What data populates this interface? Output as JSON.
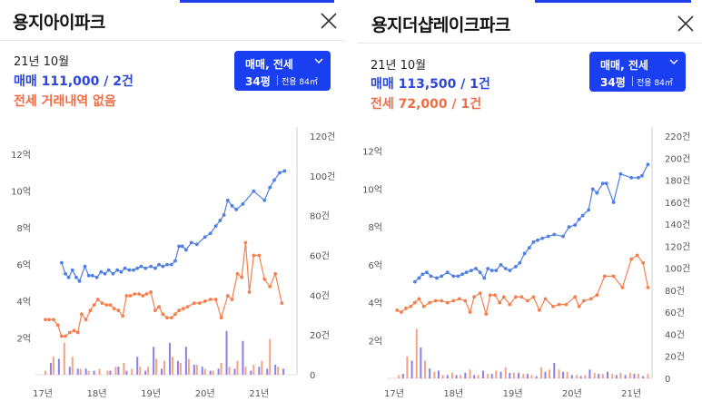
{
  "colors": {
    "accent": "#1a3ff0",
    "sale": "#4f7fe0",
    "jeonse": "#f4804f",
    "sale_bar": "#8b80e8",
    "jeonse_bar": "#f6a287"
  },
  "panels": [
    {
      "title": "용지아이파크",
      "close_icon": "close-icon",
      "date": "21년 10월",
      "sale": "매매 111,000 / 2건",
      "jeonse": "전세 거래내역 없음",
      "selector": {
        "type": "매매, 전세",
        "pyeong": "34평",
        "area": "전용 84㎡",
        "icon": "chevron-down-icon"
      },
      "chart_data": {
        "type": "line",
        "x_ticks": [
          "17년",
          "18년",
          "19년",
          "20년",
          "21년"
        ],
        "x_range": [
          2017.0,
          2021.7
        ],
        "y_left_ticks": [
          "12억",
          "10억",
          "8억",
          "6억",
          "4억",
          "2억"
        ],
        "y_left_range": [
          0,
          13
        ],
        "y_right_ticks": [
          "120건",
          "100건",
          "80건",
          "60건",
          "40건",
          "20건",
          "0"
        ],
        "y_right_range": [
          0,
          120
        ],
        "series": [
          {
            "color": "#4f7fe0",
            "kind": "line",
            "x": [
              2017.35,
              2017.42,
              2017.48,
              2017.55,
              2017.62,
              2017.68,
              2017.78,
              2017.85,
              2017.92,
              2018.0,
              2018.08,
              2018.15,
              2018.22,
              2018.3,
              2018.38,
              2018.45,
              2018.52,
              2018.6,
              2018.68,
              2018.75,
              2018.82,
              2018.9,
              2019.0,
              2019.08,
              2019.15,
              2019.22,
              2019.3,
              2019.38,
              2019.45,
              2019.52,
              2019.58,
              2019.65,
              2019.75,
              2019.85,
              2020.0,
              2020.1,
              2020.2,
              2020.28,
              2020.35,
              2020.42,
              2020.5,
              2020.58,
              2020.7,
              2020.9,
              2021.1,
              2021.2,
              2021.28,
              2021.38,
              2021.47
            ],
            "y": [
              6.1,
              5.5,
              5.3,
              5.7,
              5.3,
              5.1,
              5.9,
              5.4,
              5.4,
              5.3,
              5.6,
              5.5,
              5.7,
              5.5,
              5.7,
              5.6,
              5.8,
              5.7,
              5.7,
              5.8,
              5.9,
              5.8,
              5.9,
              5.8,
              6.0,
              5.9,
              6.0,
              6.0,
              6.2,
              7.0,
              7.0,
              6.8,
              7.2,
              7.1,
              7.5,
              7.7,
              8.1,
              8.4,
              8.7,
              9.5,
              9.2,
              9.0,
              9.3,
              10.0,
              9.5,
              10.2,
              10.6,
              11.0,
              11.1
            ]
          },
          {
            "color": "#f4804f",
            "kind": "line",
            "x": [
              2017.05,
              2017.12,
              2017.2,
              2017.28,
              2017.35,
              2017.42,
              2017.5,
              2017.58,
              2017.65,
              2017.72,
              2017.8,
              2017.88,
              2017.95,
              2018.02,
              2018.1,
              2018.18,
              2018.25,
              2018.32,
              2018.4,
              2018.48,
              2018.55,
              2018.62,
              2018.7,
              2018.78,
              2018.85,
              2018.92,
              2019.0,
              2019.08,
              2019.15,
              2019.22,
              2019.3,
              2019.38,
              2019.45,
              2019.52,
              2019.6,
              2019.68,
              2019.8,
              2019.9,
              2020.0,
              2020.1,
              2020.2,
              2020.3,
              2020.42,
              2020.5,
              2020.6,
              2020.68,
              2020.75,
              2020.82,
              2020.9,
              2021.0,
              2021.1,
              2021.2,
              2021.3,
              2021.42
            ],
            "y": [
              3.0,
              3.0,
              3.0,
              2.7,
              2.1,
              2.1,
              2.3,
              2.4,
              2.3,
              3.3,
              3.0,
              3.5,
              3.8,
              4.1,
              3.9,
              3.8,
              3.8,
              3.6,
              3.5,
              3.2,
              4.3,
              4.3,
              4.4,
              4.4,
              4.3,
              4.4,
              4.5,
              3.5,
              3.7,
              3.3,
              3.1,
              3.1,
              3.3,
              3.5,
              3.6,
              3.7,
              3.9,
              3.9,
              4.0,
              4.1,
              4.1,
              3.1,
              4.3,
              4.1,
              5.5,
              5.3,
              7.2,
              4.5,
              6.5,
              6.5,
              5.2,
              4.8,
              5.5,
              3.9
            ]
          },
          {
            "color": "#8b80e8",
            "kind": "bars",
            "x": [
              2017.15,
              2017.3,
              2017.5,
              2017.65,
              2017.8,
              2017.95,
              2018.25,
              2018.4,
              2018.55,
              2018.75,
              2018.9,
              2019.05,
              2019.2,
              2019.35,
              2019.5,
              2019.65,
              2019.8,
              2019.95,
              2020.1,
              2020.25,
              2020.4,
              2020.55,
              2020.7,
              2020.85,
              2021.0,
              2021.15,
              2021.3,
              2021.45
            ],
            "y": [
              6,
              8,
              4,
              3,
              3,
              2,
              2,
              4,
              2,
              9,
              2,
              14,
              3,
              16,
              7,
              14,
              5,
              4,
              2,
              3,
              22,
              3,
              17,
              2,
              4,
              3,
              5,
              3
            ]
          },
          {
            "color": "#f6a287",
            "kind": "bars",
            "x": [
              2017.05,
              2017.2,
              2017.4,
              2017.55,
              2017.7,
              2017.85,
              2018.05,
              2018.2,
              2018.35,
              2018.5,
              2018.65,
              2018.8,
              2018.95,
              2019.1,
              2019.25,
              2019.4,
              2019.55,
              2019.7,
              2019.85,
              2020.0,
              2020.15,
              2020.3,
              2020.45,
              2020.6,
              2020.75,
              2020.9,
              2021.05,
              2021.2,
              2021.35
            ],
            "y": [
              2,
              9,
              16,
              9,
              3,
              2,
              3,
              2,
              4,
              6,
              3,
              4,
              4,
              8,
              7,
              9,
              6,
              8,
              5,
              3,
              2,
              6,
              4,
              7,
              4,
              5,
              7,
              18,
              4
            ]
          }
        ]
      }
    },
    {
      "title": "용지더샵레이크파크",
      "close_icon": "close-icon",
      "date": "21년 10월",
      "sale": "매매 113,500 / 1건",
      "jeonse": "전세 72,000 / 1건",
      "selector": {
        "type": "매매, 전세",
        "pyeong": "34평",
        "area": "전용 84㎡",
        "icon": "chevron-down-icon"
      },
      "chart_data": {
        "type": "line",
        "x_ticks": [
          "17년",
          "18년",
          "19년",
          "20년",
          "21년"
        ],
        "x_range": [
          2017.0,
          2021.35
        ],
        "y_left_ticks": [
          "12억",
          "10억",
          "8억",
          "6억",
          "4억",
          "2억"
        ],
        "y_left_range": [
          0,
          12.8
        ],
        "y_right_ticks": [
          "220건",
          "200건",
          "180건",
          "160건",
          "140건",
          "120건",
          "100건",
          "80건",
          "60건",
          "40건",
          "20건",
          "0"
        ],
        "y_right_range": [
          0,
          220
        ],
        "series": [
          {
            "color": "#4f7fe0",
            "kind": "line",
            "x": [
              2017.35,
              2017.42,
              2017.48,
              2017.55,
              2017.62,
              2017.72,
              2017.8,
              2017.9,
              2018.0,
              2018.08,
              2018.15,
              2018.22,
              2018.3,
              2018.38,
              2018.45,
              2018.52,
              2018.58,
              2018.65,
              2018.72,
              2018.8,
              2018.88,
              2018.95,
              2019.05,
              2019.12,
              2019.2,
              2019.28,
              2019.35,
              2019.42,
              2019.5,
              2019.6,
              2019.7,
              2019.85,
              2019.95,
              2020.05,
              2020.12,
              2020.18,
              2020.28,
              2020.35,
              2020.42,
              2020.52,
              2020.58,
              2020.7,
              2020.82,
              2021.0,
              2021.12,
              2021.18,
              2021.28
            ],
            "y": [
              5.1,
              5.3,
              5.5,
              5.6,
              5.4,
              5.3,
              5.4,
              5.6,
              5.4,
              5.4,
              5.5,
              5.6,
              5.7,
              5.8,
              5.6,
              5.3,
              5.8,
              5.7,
              5.7,
              6.0,
              5.8,
              5.7,
              5.9,
              6.1,
              6.6,
              6.9,
              7.2,
              7.3,
              7.4,
              7.5,
              7.6,
              7.5,
              8.0,
              8.1,
              8.4,
              8.6,
              8.9,
              10.0,
              9.8,
              10.3,
              10.3,
              9.3,
              10.8,
              10.6,
              10.6,
              10.7,
              11.3
            ]
          },
          {
            "color": "#f4804f",
            "kind": "line",
            "x": [
              2017.05,
              2017.12,
              2017.2,
              2017.28,
              2017.35,
              2017.42,
              2017.5,
              2017.6,
              2017.7,
              2017.8,
              2017.9,
              2018.0,
              2018.1,
              2018.2,
              2018.28,
              2018.35,
              2018.45,
              2018.55,
              2018.62,
              2018.7,
              2018.78,
              2018.85,
              2018.95,
              2019.05,
              2019.15,
              2019.25,
              2019.35,
              2019.45,
              2019.55,
              2019.68,
              2019.78,
              2019.9,
              2020.05,
              2020.12,
              2020.2,
              2020.32,
              2020.42,
              2020.55,
              2020.7,
              2020.85,
              2021.0,
              2021.1,
              2021.2,
              2021.28
            ],
            "y": [
              3.6,
              3.5,
              3.7,
              3.8,
              4.0,
              4.2,
              3.8,
              4.0,
              4.1,
              4.1,
              4.0,
              4.1,
              4.2,
              4.1,
              3.5,
              4.3,
              4.5,
              3.4,
              4.4,
              4.4,
              4.0,
              4.3,
              3.9,
              4.3,
              4.3,
              4.1,
              4.3,
              3.6,
              4.2,
              3.8,
              3.9,
              3.9,
              4.3,
              3.8,
              4.1,
              4.2,
              4.4,
              5.4,
              5.4,
              4.8,
              6.3,
              6.5,
              6.1,
              4.8
            ]
          },
          {
            "color": "#8b80e8",
            "kind": "bars",
            "x": [
              2017.15,
              2017.3,
              2017.45,
              2017.6,
              2017.75,
              2017.9,
              2018.05,
              2018.2,
              2018.35,
              2018.5,
              2018.65,
              2018.8,
              2018.95,
              2019.1,
              2019.25,
              2019.4,
              2019.55,
              2019.7,
              2019.85,
              2020.0,
              2020.15,
              2020.3,
              2020.45,
              2020.6,
              2020.75,
              2020.9,
              2021.05,
              2021.2
            ],
            "y": [
              4,
              16,
              28,
              9,
              7,
              3,
              3,
              5,
              3,
              7,
              4,
              6,
              5,
              5,
              4,
              2,
              6,
              14,
              6,
              3,
              2,
              8,
              4,
              6,
              3,
              3,
              4,
              2
            ]
          },
          {
            "color": "#f6a287",
            "kind": "bars",
            "x": [
              2017.08,
              2017.22,
              2017.38,
              2017.52,
              2017.68,
              2017.82,
              2017.98,
              2018.12,
              2018.28,
              2018.42,
              2018.58,
              2018.72,
              2018.88,
              2019.02,
              2019.18,
              2019.32,
              2019.48,
              2019.62,
              2019.78,
              2019.92,
              2020.08,
              2020.22,
              2020.38,
              2020.52,
              2020.68,
              2020.82,
              2020.98,
              2021.12,
              2021.28
            ],
            "y": [
              3,
              20,
              45,
              16,
              6,
              3,
              5,
              3,
              8,
              3,
              4,
              7,
              10,
              5,
              4,
              3,
              10,
              8,
              8,
              6,
              3,
              3,
              5,
              4,
              4,
              5,
              5,
              4,
              4
            ]
          }
        ]
      }
    }
  ]
}
